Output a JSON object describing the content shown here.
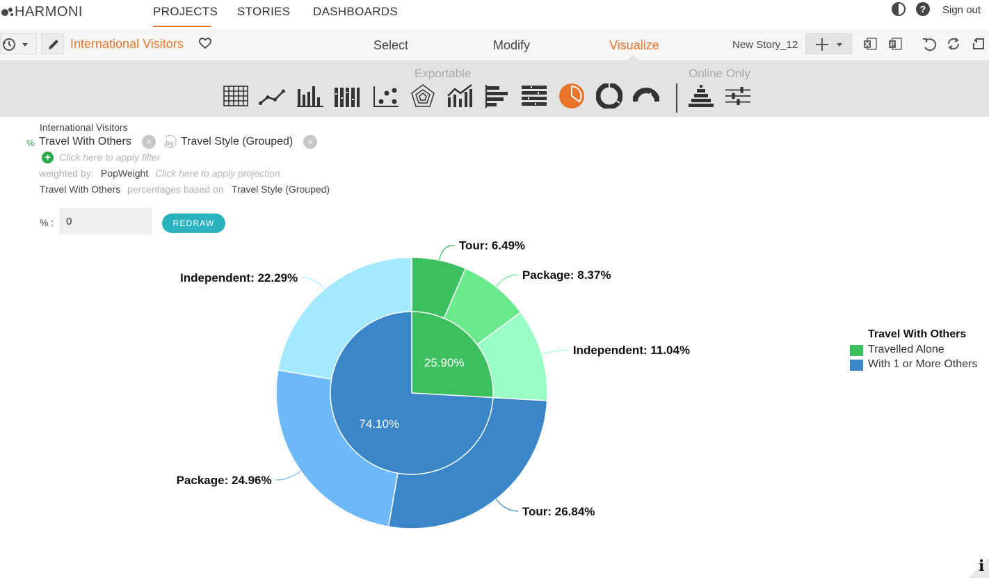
{
  "app": {
    "logo_text": "HARMONI"
  },
  "nav": {
    "tabs": [
      {
        "label": "PROJECTS"
      },
      {
        "label": "STORIES"
      },
      {
        "label": "DASHBOARDS"
      }
    ],
    "active": "PROJECTS",
    "sign_out": "Sign out"
  },
  "toolbar": {
    "project_title": "International Visitors",
    "modes": [
      "Select",
      "Modify",
      "Visualize"
    ],
    "active_mode": "Visualize",
    "story_name": "New Story_12"
  },
  "chart_types": {
    "exportable_label": "Exportable",
    "online_only_label": "Online Only",
    "selected": "pie-chart",
    "items": [
      "table",
      "line",
      "bar",
      "stacked-bar",
      "scatter",
      "radar",
      "bar-line",
      "horizontal-bar",
      "horizontal-stacked-bar",
      "pie-chart",
      "donut",
      "gauge",
      "funnel",
      "sliders"
    ]
  },
  "query": {
    "dataset": "International Visitors",
    "measure_prefix": "%",
    "measure": "Travel With Others",
    "by_dimension": "Travel Style (Grouped)",
    "filter_placeholder": "Click here to apply filter",
    "weighted_by_label": "weighted by:",
    "weight": "PopWeight",
    "projection_placeholder": "Click here to apply projection",
    "basis_measure": "Travel With Others",
    "basis_text": "percentages based on",
    "basis_dimension": "Travel Style (Grouped)"
  },
  "threshold": {
    "label": "% :",
    "value": "0",
    "redraw_label": "REDRAW"
  },
  "chart_data": {
    "type": "pie",
    "inner_ring": [
      {
        "name": "Travelled Alone",
        "value": 25.9,
        "label": "25.90%",
        "color": "#3bbf5f"
      },
      {
        "name": "With 1 or More Others",
        "value": 74.1,
        "label": "74.10%",
        "color": "#3a86c8"
      }
    ],
    "outer_ring": [
      {
        "name": "Tour",
        "group": "Travelled Alone",
        "value": 6.49,
        "label": "Tour: 6.49%",
        "color": "#3bbf5f"
      },
      {
        "name": "Package",
        "group": "Travelled Alone",
        "value": 8.37,
        "label": "Package: 8.37%",
        "color": "#6aea8d"
      },
      {
        "name": "Independent",
        "group": "Travelled Alone",
        "value": 11.04,
        "label": "Independent: 11.04%",
        "color": "#9affc4"
      },
      {
        "name": "Tour",
        "group": "With 1 or More Others",
        "value": 26.84,
        "label": "Tour: 26.84%",
        "color": "#3a86c8"
      },
      {
        "name": "Package",
        "group": "With 1 or More Others",
        "value": 24.96,
        "label": "Package: 24.96%",
        "color": "#6cb8f8"
      },
      {
        "name": "Independent",
        "group": "With 1 or More Others",
        "value": 22.29,
        "label": "Independent: 22.29%",
        "color": "#a3e9ff"
      }
    ],
    "legend": {
      "title": "Travel With Others",
      "items": [
        {
          "label": "Travelled Alone",
          "color": "#3bbf5f"
        },
        {
          "label": "With 1 or More Others",
          "color": "#3a86c8"
        }
      ],
      "placement": "right"
    }
  }
}
